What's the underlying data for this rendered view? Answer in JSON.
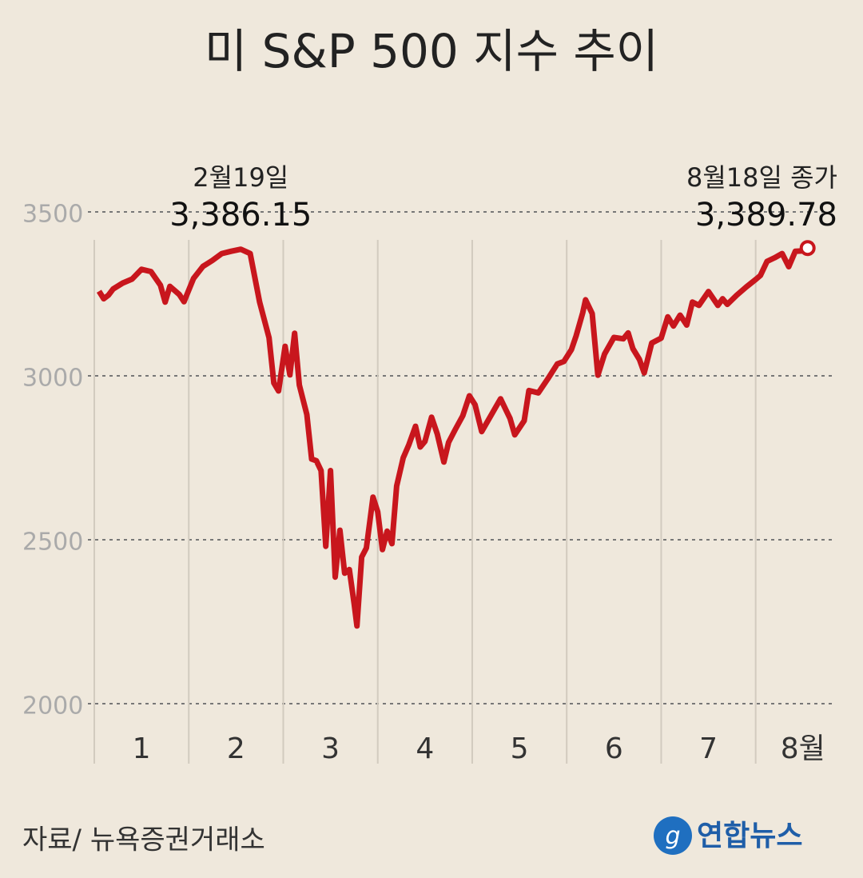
{
  "chart_data": {
    "type": "line",
    "title": "미 S&P 500 지수 추이",
    "source": "자료/ 뉴욕증권거래소",
    "logo": "연합뉴스",
    "xlim": [
      1,
      8.84
    ],
    "xticks": [
      {
        "value": 1.5,
        "label": "1"
      },
      {
        "value": 2.5,
        "label": "2"
      },
      {
        "value": 3.5,
        "label": "3"
      },
      {
        "value": 4.5,
        "label": "4"
      },
      {
        "value": 5.5,
        "label": "5"
      },
      {
        "value": 6.5,
        "label": "6"
      },
      {
        "value": 7.5,
        "label": "7"
      },
      {
        "value": 8.5,
        "label": "8월"
      }
    ],
    "ylim": [
      1850,
      3650
    ],
    "yticks": [
      2000,
      2500,
      3000,
      3500
    ],
    "grid": true,
    "series": [
      {
        "color": "#c8161d",
        "x": [
          1.05,
          1.1,
          1.15,
          1.2,
          1.3,
          1.4,
          1.5,
          1.6,
          1.7,
          1.75,
          1.8,
          1.9,
          1.95,
          2.05,
          2.15,
          2.25,
          2.35,
          2.45,
          2.55,
          2.65,
          2.75,
          2.85,
          2.9,
          2.95,
          3.02,
          3.07,
          3.12,
          3.17,
          3.25,
          3.3,
          3.35,
          3.4,
          3.45,
          3.5,
          3.55,
          3.6,
          3.65,
          3.7,
          3.75,
          3.78,
          3.83,
          3.88,
          3.95,
          4.0,
          4.05,
          4.1,
          4.15,
          4.2,
          4.27,
          4.33,
          4.4,
          4.45,
          4.5,
          4.57,
          4.63,
          4.7,
          4.75,
          4.82,
          4.9,
          4.97,
          5.03,
          5.1,
          5.2,
          5.3,
          5.4,
          5.45,
          5.55,
          5.6,
          5.7,
          5.8,
          5.9,
          5.97,
          6.05,
          6.1,
          6.17,
          6.2,
          6.27,
          6.33,
          6.4,
          6.5,
          6.6,
          6.65,
          6.7,
          6.77,
          6.82,
          6.9,
          7.0,
          7.07,
          7.13,
          7.2,
          7.27,
          7.33,
          7.4,
          7.5,
          7.6,
          7.65,
          7.7,
          7.8,
          7.9,
          8.0,
          8.05,
          8.12,
          8.2,
          8.28,
          8.35,
          8.42,
          8.5,
          8.55
        ],
        "values": [
          3258,
          3235,
          3246,
          3265,
          3283,
          3295,
          3325,
          3318,
          3276,
          3225,
          3273,
          3248,
          3226,
          3297,
          3334,
          3352,
          3373,
          3380,
          3386.15,
          3373,
          3225,
          3116,
          2978,
          2954,
          3090,
          3003,
          3130,
          2972,
          2882,
          2746,
          2741,
          2711,
          2480,
          2711,
          2386,
          2529,
          2398,
          2409,
          2305,
          2237,
          2447,
          2475,
          2630,
          2585,
          2470,
          2526,
          2488,
          2664,
          2750,
          2790,
          2846,
          2783,
          2800,
          2874,
          2823,
          2737,
          2797,
          2836,
          2878,
          2939,
          2912,
          2830,
          2880,
          2930,
          2870,
          2820,
          2863,
          2955,
          2948,
          2991,
          3036,
          3044,
          3080,
          3122,
          3193,
          3232,
          3190,
          3002,
          3066,
          3117,
          3113,
          3131,
          3083,
          3050,
          3009,
          3100,
          3115,
          3180,
          3152,
          3185,
          3155,
          3225,
          3215,
          3257,
          3215,
          3235,
          3218,
          3246,
          3271,
          3294,
          3306,
          3349,
          3360,
          3373,
          3333,
          3380,
          3381,
          3389.78
        ]
      }
    ],
    "annotations": [
      {
        "text": "2월19일",
        "value": 3386.15,
        "value_label": "3,386.15"
      },
      {
        "text": "8월18일 종가",
        "value": 3389.78,
        "value_label": "3,389.78"
      }
    ]
  }
}
